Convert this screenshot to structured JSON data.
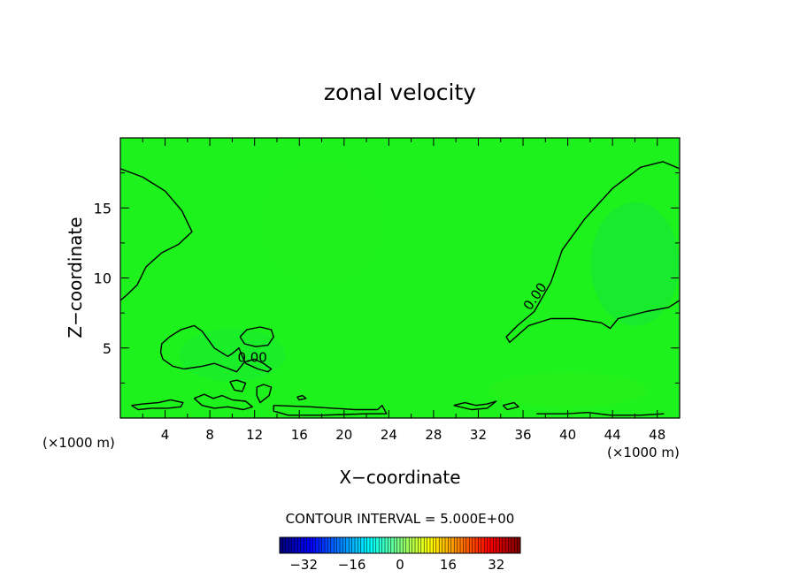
{
  "chart_data": {
    "type": "heatmap",
    "title": "zonal velocity",
    "xlabel": "X−coordinate",
    "ylabel": "Z−coordinate",
    "x_unit_left": "(×1000 m)",
    "x_unit_right": "(×1000 m)",
    "xlim": [
      0,
      50
    ],
    "ylim": [
      0,
      20
    ],
    "xticks": [
      4,
      8,
      12,
      16,
      20,
      24,
      28,
      32,
      36,
      40,
      44,
      48
    ],
    "yticks": [
      5,
      10,
      15
    ],
    "xtick_labels": [
      "4",
      "8",
      "12",
      "16",
      "20",
      "24",
      "28",
      "32",
      "36",
      "40",
      "44",
      "48"
    ],
    "ytick_labels": [
      "5",
      "10",
      "15"
    ],
    "field_color": "#1df21c",
    "contour_color": "#000000",
    "contour_level_label": "0.00",
    "contour_label_positions": [
      {
        "text": "0.00",
        "x": 37.4,
        "y": 8.5
      },
      {
        "text": "0.00",
        "x": 11.8,
        "y": 4.0
      }
    ],
    "zero_contours": [
      {
        "name": "upper-left",
        "points": [
          [
            0,
            17.8
          ],
          [
            2,
            17.2
          ],
          [
            4,
            16.2
          ],
          [
            5.5,
            14.8
          ],
          [
            6.4,
            13.3
          ],
          [
            5.2,
            12.4
          ],
          [
            3.7,
            11.8
          ],
          [
            2.3,
            10.8
          ],
          [
            1.5,
            9.5
          ],
          [
            0.6,
            8.8
          ],
          [
            0,
            8.4
          ]
        ]
      },
      {
        "name": "upper-right",
        "points": [
          [
            50,
            17.8
          ],
          [
            48.5,
            18.3
          ],
          [
            46.5,
            17.9
          ],
          [
            44,
            16.4
          ],
          [
            41.5,
            14.2
          ],
          [
            39.5,
            12
          ],
          [
            38.5,
            9.7
          ],
          [
            37,
            7.6
          ],
          [
            35.5,
            6.6
          ],
          [
            34.5,
            5.8
          ],
          [
            34.8,
            5.4
          ],
          [
            36.5,
            6.6
          ],
          [
            38.5,
            7.1
          ],
          [
            40.5,
            7.1
          ],
          [
            43,
            6.8
          ],
          [
            43.8,
            6.4
          ],
          [
            44.5,
            7.1
          ],
          [
            47,
            7.6
          ],
          [
            49,
            7.9
          ],
          [
            50,
            8.4
          ]
        ]
      },
      {
        "name": "lower-left-loop",
        "points": [
          [
            3.6,
            4.7
          ],
          [
            3.7,
            5.3
          ],
          [
            4.4,
            5.8
          ],
          [
            5.4,
            6.3
          ],
          [
            6.6,
            6.6
          ],
          [
            7.3,
            6.2
          ],
          [
            8.4,
            5.0
          ],
          [
            9.6,
            4.4
          ],
          [
            10,
            4.6
          ],
          [
            10.6,
            5.0
          ],
          [
            10.9,
            4.4
          ],
          [
            11.2,
            3.9
          ],
          [
            12.3,
            3.5
          ],
          [
            13.2,
            3.3
          ],
          [
            13.5,
            3.5
          ],
          [
            12.8,
            3.9
          ],
          [
            12,
            4.2
          ],
          [
            11.1,
            4.0
          ],
          [
            10.4,
            3.3
          ],
          [
            9.4,
            3.6
          ],
          [
            8.4,
            3.9
          ],
          [
            7.3,
            3.7
          ],
          [
            5.7,
            3.5
          ],
          [
            4.7,
            3.7
          ],
          [
            3.8,
            4.2
          ],
          [
            3.6,
            4.7
          ]
        ]
      },
      {
        "name": "small-loop-12",
        "points": [
          [
            10.7,
            5.8
          ],
          [
            11.3,
            6.3
          ],
          [
            12.5,
            6.5
          ],
          [
            13.5,
            6.3
          ],
          [
            13.7,
            5.8
          ],
          [
            13.2,
            5.2
          ],
          [
            12.1,
            5.1
          ],
          [
            11.1,
            5.3
          ],
          [
            10.7,
            5.8
          ]
        ]
      },
      {
        "name": "small-loop-10",
        "points": [
          [
            9.8,
            2.6
          ],
          [
            10.4,
            2.7
          ],
          [
            11.2,
            2.5
          ],
          [
            10.9,
            1.9
          ],
          [
            10.2,
            2.0
          ],
          [
            9.8,
            2.6
          ]
        ]
      },
      {
        "name": "small-loop-13",
        "points": [
          [
            12.2,
            2.2
          ],
          [
            12.8,
            2.4
          ],
          [
            13.5,
            2.2
          ],
          [
            13.3,
            1.6
          ],
          [
            12.5,
            1.1
          ],
          [
            12.2,
            1.6
          ],
          [
            12.2,
            2.2
          ]
        ]
      },
      {
        "name": "bottom-strip-1",
        "points": [
          [
            1,
            0.9
          ],
          [
            2,
            1.0
          ],
          [
            3.4,
            1.1
          ],
          [
            4.5,
            1.3
          ],
          [
            5.6,
            1.1
          ],
          [
            5.4,
            0.8
          ],
          [
            4.2,
            0.7
          ],
          [
            2.8,
            0.7
          ],
          [
            1.6,
            0.6
          ],
          [
            1,
            0.9
          ]
        ]
      },
      {
        "name": "bottom-strip-2",
        "points": [
          [
            6.6,
            1.4
          ],
          [
            7.5,
            1.7
          ],
          [
            8.3,
            1.4
          ],
          [
            9.1,
            1.6
          ],
          [
            10,
            1.3
          ],
          [
            11.2,
            1.2
          ],
          [
            11.8,
            0.8
          ],
          [
            11,
            0.6
          ],
          [
            9.6,
            0.8
          ],
          [
            8.4,
            0.7
          ],
          [
            7.3,
            0.9
          ],
          [
            6.6,
            1.4
          ]
        ]
      },
      {
        "name": "bottom-strip-3",
        "points": [
          [
            13.7,
            0.9
          ],
          [
            17,
            0.8
          ],
          [
            21,
            0.6
          ],
          [
            23,
            0.6
          ],
          [
            23.4,
            0.9
          ],
          [
            23.8,
            0.3
          ],
          [
            22,
            0.3
          ],
          [
            18,
            0.2
          ],
          [
            15,
            0.2
          ],
          [
            13.7,
            0.5
          ],
          [
            13.7,
            0.9
          ]
        ]
      },
      {
        "name": "bottom-strip-4",
        "points": [
          [
            29.8,
            0.9
          ],
          [
            30.8,
            1.1
          ],
          [
            31.8,
            0.9
          ],
          [
            32.8,
            1.0
          ],
          [
            33.6,
            1.2
          ],
          [
            32.8,
            0.7
          ],
          [
            31.4,
            0.6
          ],
          [
            29.8,
            0.9
          ]
        ]
      },
      {
        "name": "bottom-strip-5",
        "points": [
          [
            34.2,
            0.9
          ],
          [
            35.2,
            1.1
          ],
          [
            35.6,
            0.8
          ],
          [
            34.6,
            0.6
          ],
          [
            34.2,
            0.9
          ]
        ]
      },
      {
        "name": "bottom-strip-6",
        "points": [
          [
            37.2,
            0.3
          ],
          [
            39.8,
            0.3
          ],
          [
            41.8,
            0.4
          ],
          [
            43.8,
            0.2
          ],
          [
            46.5,
            0.2
          ],
          [
            48.6,
            0.3
          ]
        ]
      },
      {
        "name": "tiny-blob",
        "points": [
          [
            15.8,
            1.5
          ],
          [
            16.3,
            1.6
          ],
          [
            16.6,
            1.4
          ],
          [
            16,
            1.3
          ],
          [
            15.8,
            1.5
          ]
        ]
      }
    ],
    "contour_interval_text": "CONTOUR INTERVAL = 5.000E+00",
    "colorbar": {
      "min": -40,
      "max": 40,
      "steps": 80,
      "tick_values": [
        -32,
        -16,
        0,
        16,
        32
      ],
      "tick_labels": [
        "−32",
        "−16",
        "0",
        "16",
        "32"
      ]
    }
  }
}
